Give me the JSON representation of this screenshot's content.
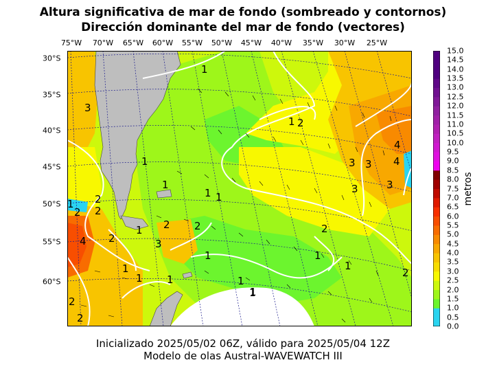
{
  "title_line1": "Altura significativa de mar de fondo (sombreado y contornos)",
  "title_line2": "Dirección dominante del mar de fondo (vectores)",
  "lon_labels": [
    "75°W",
    "70°W",
    "65°W",
    "60°W",
    "55°W",
    "50°W",
    "45°W",
    "40°W",
    "35°W",
    "30°W",
    "25°W"
  ],
  "lat_labels": [
    "30°S",
    "35°S",
    "40°S",
    "45°S",
    "50°S",
    "55°S",
    "60°S"
  ],
  "contour_labels": [
    "1",
    "1",
    "1",
    "1",
    "1",
    "1",
    "1",
    "1",
    "1",
    "1",
    "1",
    "1",
    "1",
    "1",
    "1",
    "2",
    "2",
    "2",
    "2",
    "2",
    "2",
    "2",
    "2",
    "2",
    "3",
    "3",
    "3",
    "3",
    "3",
    "3",
    "4",
    "4",
    "4",
    "1",
    "2",
    "1",
    "2"
  ],
  "colorbar": {
    "label": "metros",
    "ticks": [
      "15.0",
      "14.5",
      "14.0",
      "13.5",
      "13.0",
      "12.5",
      "12.0",
      "11.5",
      "11.0",
      "10.5",
      "10.0",
      "9.5",
      "9.0",
      "8.5",
      "8.0",
      "7.5",
      "7.0",
      "6.5",
      "6.0",
      "5.5",
      "5.0",
      "4.5",
      "4.0",
      "3.5",
      "3.0",
      "2.5",
      "2.0",
      "1.5",
      "1.0",
      "0.5",
      "0.0"
    ],
    "colors": [
      "#2ad4f0",
      "#2ad4f0",
      "#6cf52e",
      "#9ef61a",
      "#cdf80c",
      "#f8f800",
      "#f8dd00",
      "#f8c400",
      "#f8a800",
      "#f88a00",
      "#f86c00",
      "#f84e00",
      "#f83000",
      "#e01a00",
      "#c00a00",
      "#a00000",
      "#800000",
      "#f000f0",
      "#e010e0",
      "#d018d0",
      "#c020c0",
      "#b020b0",
      "#a020a8",
      "#9020a0",
      "#801898",
      "#701090",
      "#600888",
      "#500080",
      "#500080",
      "#500080"
    ]
  },
  "colors": {
    "land": "#bebebe",
    "ice": "#ffffff",
    "grid": "#1a1a8c",
    "contour": "#ffffff"
  },
  "footer_line1": "Inicializado 2025/05/02 06Z, válido para 2025/05/04 12Z",
  "footer_line2": "Modelo de olas Austral-WAVEWATCH III"
}
